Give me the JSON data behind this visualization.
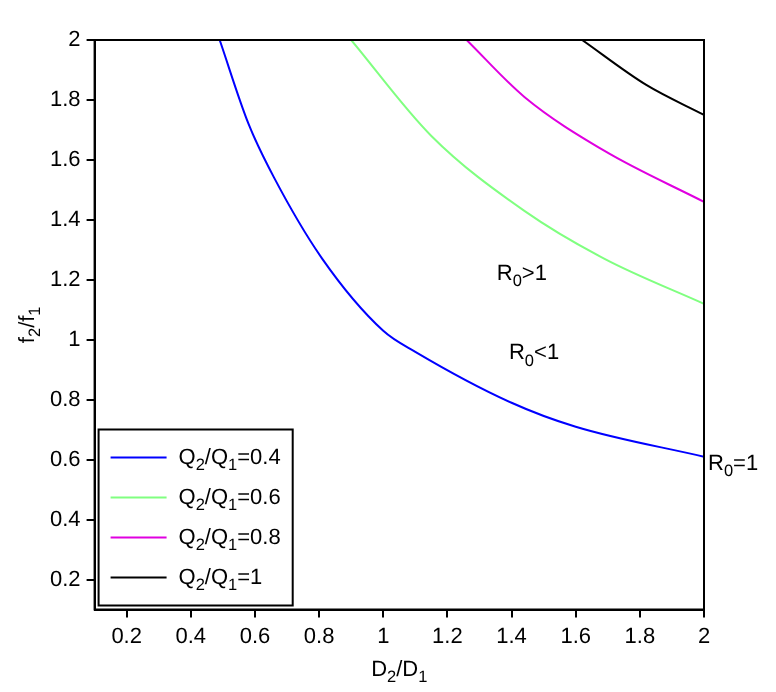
{
  "chart_data": {
    "type": "line",
    "xlabel": "D$_{2}$/D$_{1}$",
    "ylabel": "f$_{2}$/f$_{1}$",
    "xlim": [
      0.1,
      2
    ],
    "ylim": [
      0.1,
      2
    ],
    "xticks": [
      0.2,
      0.4,
      0.6,
      0.8,
      1,
      1.2,
      1.4,
      1.6,
      1.8,
      2
    ],
    "yticks": [
      0.2,
      0.4,
      0.6,
      0.8,
      1,
      1.2,
      1.4,
      1.6,
      1.8,
      2
    ],
    "grid": false,
    "legend": "bottom left",
    "marker": "none",
    "line_style": "solid",
    "series": [
      {
        "name": "Q$_{2}$/Q$_{1}$=0.4",
        "color": "#0000ff",
        "x": [
          0.49,
          0.58,
          0.66,
          0.81,
          1.0,
          1.1,
          1.4,
          1.6,
          2
        ],
        "values": [
          2,
          1.72,
          1.54,
          1.27,
          1.03,
          0.96,
          0.79,
          0.71,
          0.61
        ]
      },
      {
        "name": "Q$_{2}$/Q$_{1}$=0.6",
        "color": "#80ff80",
        "x": [
          0.9,
          1.15,
          1.44,
          1.69,
          2
        ],
        "values": [
          2,
          1.68,
          1.43,
          1.27,
          1.12
        ]
      },
      {
        "name": "Q$_{2}$/Q$_{1}$=0.8",
        "color": "#e000e0",
        "x": [
          1.26,
          1.44,
          1.69,
          2
        ],
        "values": [
          2,
          1.81,
          1.63,
          1.46
        ]
      },
      {
        "name": "Q$_{2}$/Q$_{1}$=1",
        "color": "#000000",
        "x": [
          1.62,
          1.82,
          2
        ],
        "values": [
          2,
          1.85,
          1.75
        ]
      }
    ],
    "annotations": [
      "R$_{0}$>1",
      "R$_{0}$<1",
      {
        "text": "R$_{0}$=1",
        "x": 2,
        "y": 0.6
      }
    ]
  }
}
